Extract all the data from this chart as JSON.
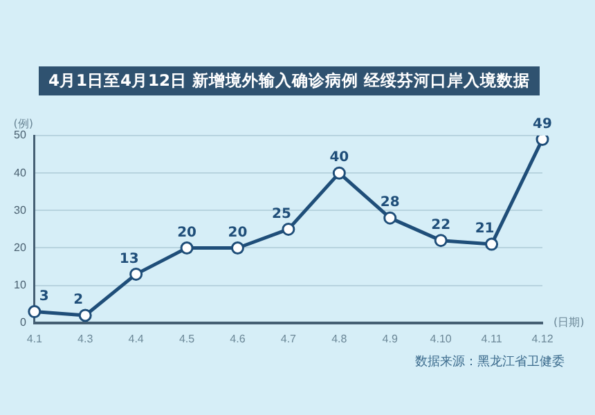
{
  "chart_data": {
    "type": "line",
    "title": "4月1日至4月12日 新增境外输入确诊病例 经绥芬河口岸入境数据",
    "ylabel": "(例)",
    "xlabel": "(日期)",
    "categories": [
      "4.1",
      "4.3",
      "4.4",
      "4.5",
      "4.6",
      "4.7",
      "4.8",
      "4.9",
      "4.10",
      "4.11",
      "4.12"
    ],
    "series": [
      {
        "color": "#1f4e79",
        "values": [
          3,
          2,
          13,
          20,
          20,
          25,
          40,
          28,
          22,
          21,
          49
        ]
      }
    ],
    "ylim": [
      0,
      50
    ],
    "yticks": [
      0,
      10,
      20,
      30,
      40,
      50
    ],
    "grid": "y",
    "marker": "circle",
    "data_labels": true,
    "legend": false,
    "annotations": [
      "数据来源：黑龙江省卫健委"
    ]
  }
}
